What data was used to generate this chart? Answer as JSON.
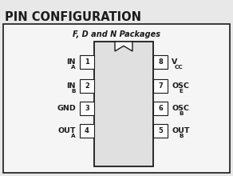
{
  "title": "PIN CONFIGURATION",
  "subtitle": "F, D and N Packages",
  "left_pins": [
    {
      "num": "1",
      "label_main": "IN",
      "label_sub": "A"
    },
    {
      "num": "2",
      "label_main": "IN",
      "label_sub": "B"
    },
    {
      "num": "3",
      "label_main": "GND",
      "label_sub": ""
    },
    {
      "num": "4",
      "label_main": "OUT",
      "label_sub": "A"
    }
  ],
  "right_pins": [
    {
      "num": "8",
      "label_main": "V",
      "label_sub": "CC"
    },
    {
      "num": "7",
      "label_main": "OSC",
      "label_sub": "E"
    },
    {
      "num": "6",
      "label_main": "OSC",
      "label_sub": "B"
    },
    {
      "num": "5",
      "label_main": "OUT",
      "label_sub": "B"
    }
  ],
  "bg_color": "#e8e8e8",
  "box_facecolor": "#f5f5f5",
  "ic_facecolor": "#e0e0e0",
  "pin_box_facecolor": "#ffffff",
  "line_color": "#1a1a1a",
  "title_fontsize": 10.5,
  "subtitle_fontsize": 7.0,
  "label_fontsize": 6.8,
  "sub_fontsize": 5.2,
  "num_fontsize": 6.0
}
